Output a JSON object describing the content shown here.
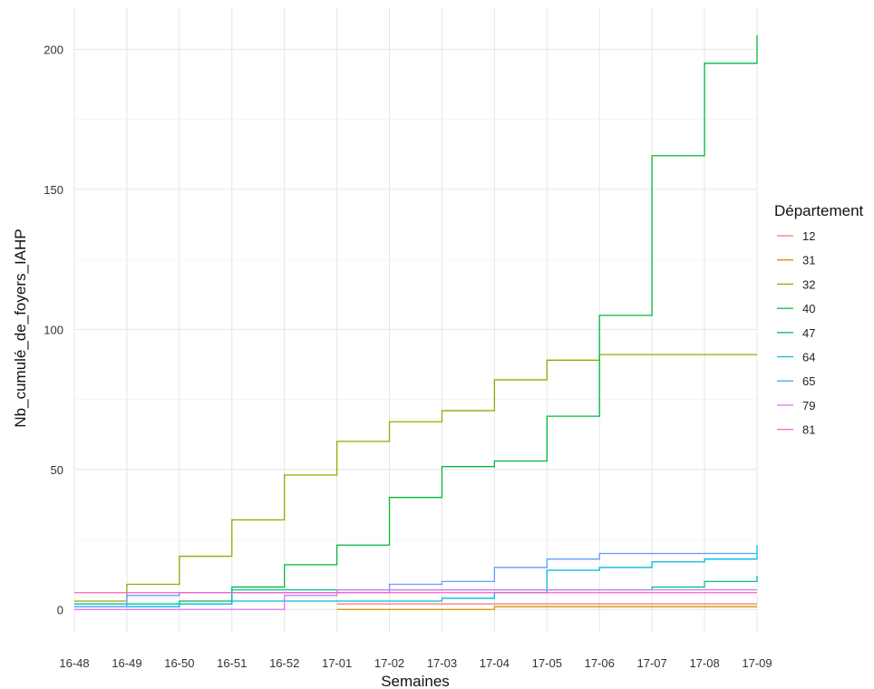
{
  "chart_data": {
    "type": "line",
    "step": true,
    "xlabel": "Semaines",
    "ylabel": "Nb_cumulé_de_foyers_IAHP",
    "x": [
      "16-48",
      "16-49",
      "16-50",
      "16-51",
      "16-52",
      "17-01",
      "17-02",
      "17-03",
      "17-04",
      "17-05",
      "17-06",
      "17-07",
      "17-08",
      "17-09"
    ],
    "ylim": [
      -8,
      215
    ],
    "yticks": [
      0,
      50,
      100,
      150,
      200
    ],
    "grid": true,
    "legend": {
      "title": "Département",
      "placement": "right"
    },
    "series": [
      {
        "name": "12",
        "color": "#F8766D",
        "values": [
          null,
          null,
          null,
          null,
          null,
          2,
          2,
          2,
          2,
          2,
          2,
          2,
          2,
          2
        ]
      },
      {
        "name": "31",
        "color": "#D39200",
        "values": [
          null,
          null,
          null,
          null,
          null,
          0,
          0,
          0,
          1,
          1,
          1,
          1,
          1,
          1
        ]
      },
      {
        "name": "32",
        "color": "#93AA00",
        "values": [
          3,
          9,
          19,
          32,
          48,
          60,
          67,
          71,
          82,
          89,
          91,
          91,
          91,
          91
        ]
      },
      {
        "name": "40",
        "color": "#00BA38",
        "values": [
          2,
          2,
          3,
          8,
          16,
          23,
          40,
          51,
          53,
          69,
          105,
          162,
          195,
          205
        ]
      },
      {
        "name": "47",
        "color": "#00C19F",
        "values": [
          2,
          2,
          2,
          7,
          7,
          7,
          7,
          7,
          7,
          7,
          7,
          8,
          10,
          12
        ]
      },
      {
        "name": "64",
        "color": "#00B9E3",
        "values": [
          1,
          1,
          2,
          3,
          3,
          3,
          3,
          4,
          6,
          14,
          15,
          17,
          18,
          23
        ]
      },
      {
        "name": "65",
        "color": "#619CFF",
        "values": [
          1,
          5,
          6,
          6,
          6,
          6,
          9,
          10,
          15,
          18,
          20,
          20,
          20,
          20
        ]
      },
      {
        "name": "79",
        "color": "#DB72FB",
        "values": [
          0,
          0,
          0,
          0,
          5,
          7,
          7,
          7,
          7,
          7,
          7,
          7,
          7,
          7
        ]
      },
      {
        "name": "81",
        "color": "#FF61C3",
        "values": [
          6,
          6,
          6,
          6,
          6,
          6,
          6,
          6,
          6,
          6,
          6,
          6,
          6,
          6
        ]
      }
    ]
  }
}
